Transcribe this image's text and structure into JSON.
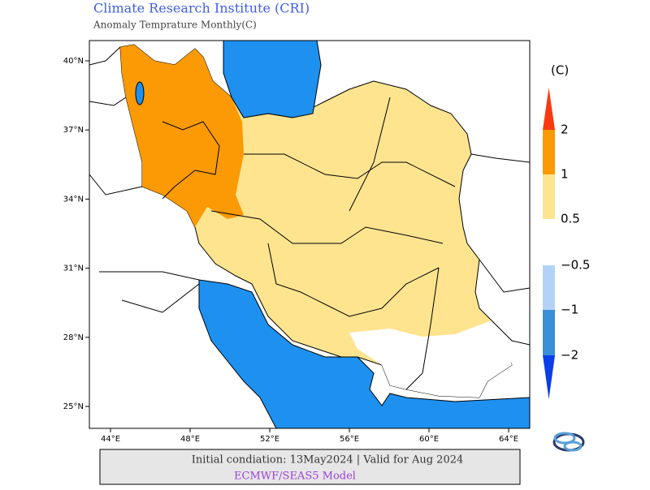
{
  "header": {
    "title": "Climate Research Institute (CRI)",
    "subtitle": "Anomaly Temprature Monthly(C)"
  },
  "map": {
    "lat_ticks": [
      {
        "value": 40,
        "label": "40°N"
      },
      {
        "value": 37,
        "label": "37°N"
      },
      {
        "value": 34,
        "label": "34°N"
      },
      {
        "value": 31,
        "label": "31°N"
      },
      {
        "value": 28,
        "label": "28°N"
      },
      {
        "value": 25,
        "label": "25°N"
      }
    ],
    "lon_ticks": [
      {
        "value": 44,
        "label": "44°E"
      },
      {
        "value": 48,
        "label": "48°E"
      },
      {
        "value": 52,
        "label": "52°E"
      },
      {
        "value": 56,
        "label": "56°E"
      },
      {
        "value": 60,
        "label": "60°E"
      },
      {
        "value": 64,
        "label": "64°E"
      }
    ]
  },
  "legend": {
    "unit": "(C)",
    "labels": [
      "2",
      "1",
      "0.5",
      "−0.5",
      "−1",
      "−2"
    ]
  },
  "footer": {
    "condition": "Initial condiation: 13May2024 | Valid for Aug 2024",
    "model": "ECMWF/SEAS5 Model"
  }
}
